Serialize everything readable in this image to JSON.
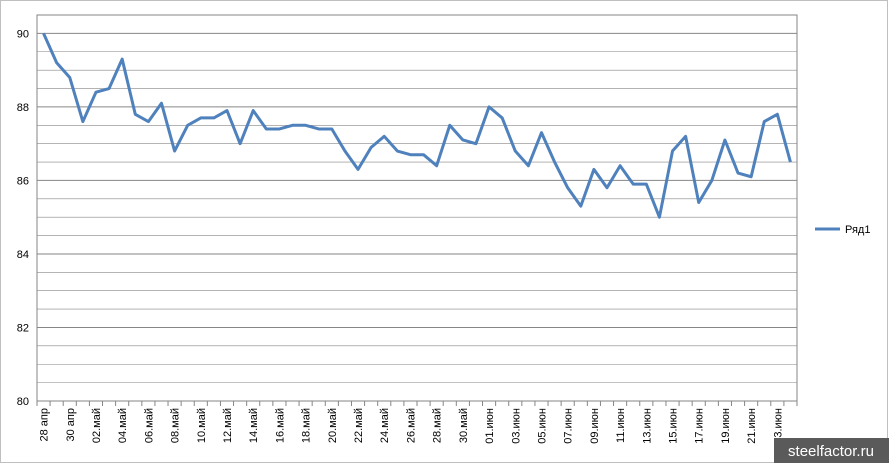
{
  "chart_data": {
    "type": "line",
    "categories": [
      "28 апр",
      null,
      "30 апр",
      null,
      "02.май",
      null,
      "04.май",
      null,
      "06.май",
      null,
      "08.май",
      null,
      "10.май",
      null,
      "12.май",
      null,
      "14.май",
      null,
      "16.май",
      null,
      "18.май",
      null,
      "20.май",
      null,
      "22.май",
      null,
      "24.май",
      null,
      "26.май",
      null,
      "28.май",
      null,
      "30.май",
      null,
      "01.июн",
      null,
      "03.июн",
      null,
      "05.июн",
      null,
      "07.июн",
      null,
      "09.июн",
      null,
      "11.июн",
      null,
      "13.июн",
      null,
      "15.июн",
      null,
      "17.июн",
      null,
      "19.июн",
      null,
      "21.июн",
      null,
      "23.июн",
      null
    ],
    "series": [
      {
        "name": "Ряд1",
        "color": "#4f81bd",
        "values": [
          90.0,
          89.2,
          88.8,
          87.6,
          88.4,
          88.5,
          89.3,
          87.8,
          87.6,
          88.1,
          86.8,
          87.5,
          87.7,
          87.7,
          87.9,
          87.0,
          87.9,
          87.4,
          87.4,
          87.5,
          87.5,
          87.4,
          87.4,
          86.8,
          86.3,
          86.9,
          87.2,
          86.8,
          86.7,
          86.7,
          86.4,
          87.5,
          87.1,
          87.0,
          88.0,
          87.7,
          86.8,
          86.4,
          87.3,
          86.5,
          85.8,
          85.3,
          86.3,
          85.8,
          86.4,
          85.9,
          85.9,
          85.0,
          86.8,
          87.2,
          85.4,
          86.0,
          87.1,
          86.2,
          86.1,
          87.6,
          87.8,
          86.5
        ]
      }
    ],
    "ylim": [
      80,
      90.5
    ],
    "yticks": [
      80,
      82,
      84,
      86,
      88,
      90
    ],
    "grid": true,
    "minor_grid": true,
    "legend": "right",
    "watermark": "steelfactor.ru"
  }
}
